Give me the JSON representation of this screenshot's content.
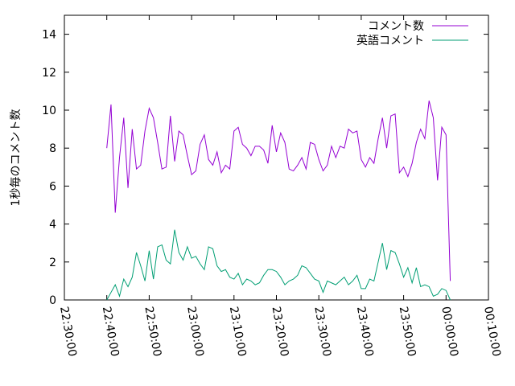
{
  "chart_data": {
    "type": "line",
    "ylabel": "1秒毎のコメント数",
    "x": [
      "22:40:00",
      "22:41:00",
      "22:42:00",
      "22:43:00",
      "22:44:00",
      "22:45:00",
      "22:46:00",
      "22:47:00",
      "22:48:00",
      "22:49:00",
      "22:50:00",
      "22:51:00",
      "22:52:00",
      "22:53:00",
      "22:54:00",
      "22:55:00",
      "22:56:00",
      "22:57:00",
      "22:58:00",
      "22:59:00",
      "23:00:00",
      "23:01:00",
      "23:02:00",
      "23:03:00",
      "23:04:00",
      "23:05:00",
      "23:06:00",
      "23:07:00",
      "23:08:00",
      "23:09:00",
      "23:10:00",
      "23:11:00",
      "23:12:00",
      "23:13:00",
      "23:14:00",
      "23:15:00",
      "23:16:00",
      "23:17:00",
      "23:18:00",
      "23:19:00",
      "23:20:00",
      "23:21:00",
      "23:22:00",
      "23:23:00",
      "23:24:00",
      "23:25:00",
      "23:26:00",
      "23:27:00",
      "23:28:00",
      "23:29:00",
      "23:30:00",
      "23:31:00",
      "23:32:00",
      "23:33:00",
      "23:34:00",
      "23:35:00",
      "23:36:00",
      "23:37:00",
      "23:38:00",
      "23:39:00",
      "23:40:00",
      "23:41:00",
      "23:42:00",
      "23:43:00",
      "23:44:00",
      "23:45:00",
      "23:46:00",
      "23:47:00",
      "23:48:00",
      "23:49:00",
      "23:50:00",
      "23:51:00",
      "23:52:00",
      "23:53:00",
      "23:54:00",
      "23:55:00",
      "23:56:00",
      "23:57:00",
      "23:58:00",
      "23:59:00",
      "00:00:00",
      "00:01:00"
    ],
    "series": [
      {
        "name": "コメント数",
        "color": "#9400d3",
        "values": [
          8.0,
          10.3,
          4.6,
          7.5,
          9.6,
          5.9,
          9.0,
          6.9,
          7.1,
          8.9,
          10.1,
          9.6,
          8.3,
          6.9,
          7.0,
          9.7,
          7.3,
          8.9,
          8.7,
          7.6,
          6.6,
          6.8,
          8.2,
          8.7,
          7.4,
          7.1,
          7.8,
          6.7,
          7.1,
          6.9,
          8.9,
          9.1,
          8.2,
          8.0,
          7.6,
          8.1,
          8.1,
          7.9,
          7.2,
          9.2,
          7.8,
          8.8,
          8.3,
          6.9,
          6.8,
          7.1,
          7.5,
          6.9,
          8.3,
          8.2,
          7.4,
          6.8,
          7.1,
          8.1,
          7.5,
          8.1,
          8.0,
          9.0,
          8.8,
          8.9,
          7.4,
          7.0,
          7.5,
          7.2,
          8.5,
          9.6,
          8.0,
          9.7,
          9.8,
          6.7,
          7.0,
          6.5,
          7.2,
          8.3,
          9.0,
          8.5,
          10.5,
          9.6,
          6.3,
          9.1,
          8.7,
          1.0
        ]
      },
      {
        "name": "英語コメント",
        "color": "#009e73",
        "values": [
          0.0,
          0.4,
          0.8,
          0.2,
          1.1,
          0.7,
          1.2,
          2.5,
          1.8,
          1.0,
          2.6,
          1.1,
          2.8,
          2.9,
          2.1,
          1.9,
          3.7,
          2.5,
          2.1,
          2.8,
          2.2,
          2.3,
          1.9,
          1.6,
          2.8,
          2.7,
          1.8,
          1.5,
          1.6,
          1.2,
          1.1,
          1.4,
          0.8,
          1.1,
          1.0,
          0.8,
          0.9,
          1.3,
          1.6,
          1.6,
          1.5,
          1.2,
          0.8,
          1.0,
          1.1,
          1.3,
          1.8,
          1.7,
          1.4,
          1.1,
          1.0,
          0.4,
          1.0,
          0.9,
          0.8,
          1.0,
          1.2,
          0.8,
          1.0,
          1.3,
          0.6,
          0.6,
          1.1,
          1.0,
          2.0,
          3.0,
          1.6,
          2.6,
          2.5,
          1.9,
          1.2,
          1.7,
          0.9,
          1.7,
          0.7,
          0.8,
          0.7,
          0.2,
          0.3,
          0.6,
          0.5,
          0.0
        ]
      }
    ],
    "xlim": [
      "22:30:00",
      "00:10:00"
    ],
    "xticks": [
      "22:30:00",
      "22:40:00",
      "22:50:00",
      "23:00:00",
      "23:10:00",
      "23:20:00",
      "23:30:00",
      "23:40:00",
      "23:50:00",
      "00:00:00",
      "00:10:00"
    ],
    "ylim": [
      0,
      15
    ],
    "yticks": [
      0,
      2,
      4,
      6,
      8,
      10,
      12,
      14
    ],
    "legend": "top-right"
  }
}
